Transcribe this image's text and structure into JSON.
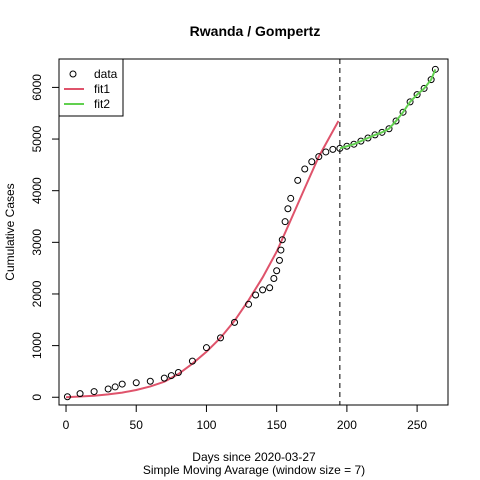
{
  "chart_data": {
    "type": "scatter",
    "title": "Rwanda / Gompertz",
    "xlabel": "Days since 2020-03-27",
    "xlabel_sub": "Simple Moving Avarage (window size = 7)",
    "ylabel": "Cumulative Cases",
    "xlim": [
      -5,
      272
    ],
    "ylim": [
      -150,
      6550
    ],
    "x_ticks": [
      0,
      50,
      100,
      150,
      200,
      250
    ],
    "y_ticks": [
      0,
      1000,
      2000,
      3000,
      4000,
      5000,
      6000
    ],
    "vline_x": 195,
    "legend_position": "top-left",
    "legend": [
      {
        "label": "data",
        "kind": "point",
        "color": "#000000"
      },
      {
        "label": "fit1",
        "kind": "line",
        "color": "#DF536B"
      },
      {
        "label": "fit2",
        "kind": "line",
        "color": "#61D04F"
      }
    ],
    "series": [
      {
        "name": "data",
        "kind": "points",
        "color": "#000000",
        "x": [
          1,
          10,
          20,
          30,
          35,
          40,
          50,
          60,
          70,
          75,
          80,
          90,
          100,
          110,
          120,
          130,
          135,
          140,
          145,
          148,
          150,
          152,
          153,
          154,
          156,
          158,
          160,
          165,
          170,
          175,
          180,
          185,
          190,
          195,
          200,
          205,
          210,
          215,
          220,
          225,
          230,
          235,
          240,
          245,
          250,
          255,
          260,
          263
        ],
        "y": [
          10,
          70,
          110,
          160,
          200,
          255,
          280,
          310,
          370,
          420,
          480,
          700,
          960,
          1150,
          1450,
          1800,
          1980,
          2080,
          2120,
          2300,
          2450,
          2650,
          2850,
          3050,
          3400,
          3650,
          3850,
          4200,
          4420,
          4560,
          4660,
          4750,
          4800,
          4820,
          4860,
          4900,
          4960,
          5020,
          5080,
          5130,
          5200,
          5350,
          5520,
          5720,
          5860,
          5980,
          6150,
          6350
        ]
      },
      {
        "name": "fit1",
        "kind": "line",
        "color": "#DF536B",
        "x": [
          0,
          10,
          20,
          30,
          40,
          50,
          60,
          70,
          80,
          90,
          100,
          110,
          120,
          130,
          140,
          150,
          160,
          170,
          180,
          194
        ],
        "y": [
          0,
          15,
          30,
          55,
          90,
          140,
          210,
          300,
          450,
          650,
          880,
          1150,
          1480,
          1880,
          2320,
          2820,
          3430,
          4050,
          4660,
          5350
        ]
      },
      {
        "name": "fit2",
        "kind": "line",
        "color": "#61D04F",
        "x": [
          195,
          200,
          205,
          210,
          215,
          220,
          225,
          230,
          235,
          240,
          245,
          250,
          255,
          260,
          263
        ],
        "y": [
          4820,
          4860,
          4900,
          4960,
          5020,
          5080,
          5130,
          5200,
          5350,
          5520,
          5720,
          5860,
          5980,
          6150,
          6350
        ]
      }
    ]
  }
}
